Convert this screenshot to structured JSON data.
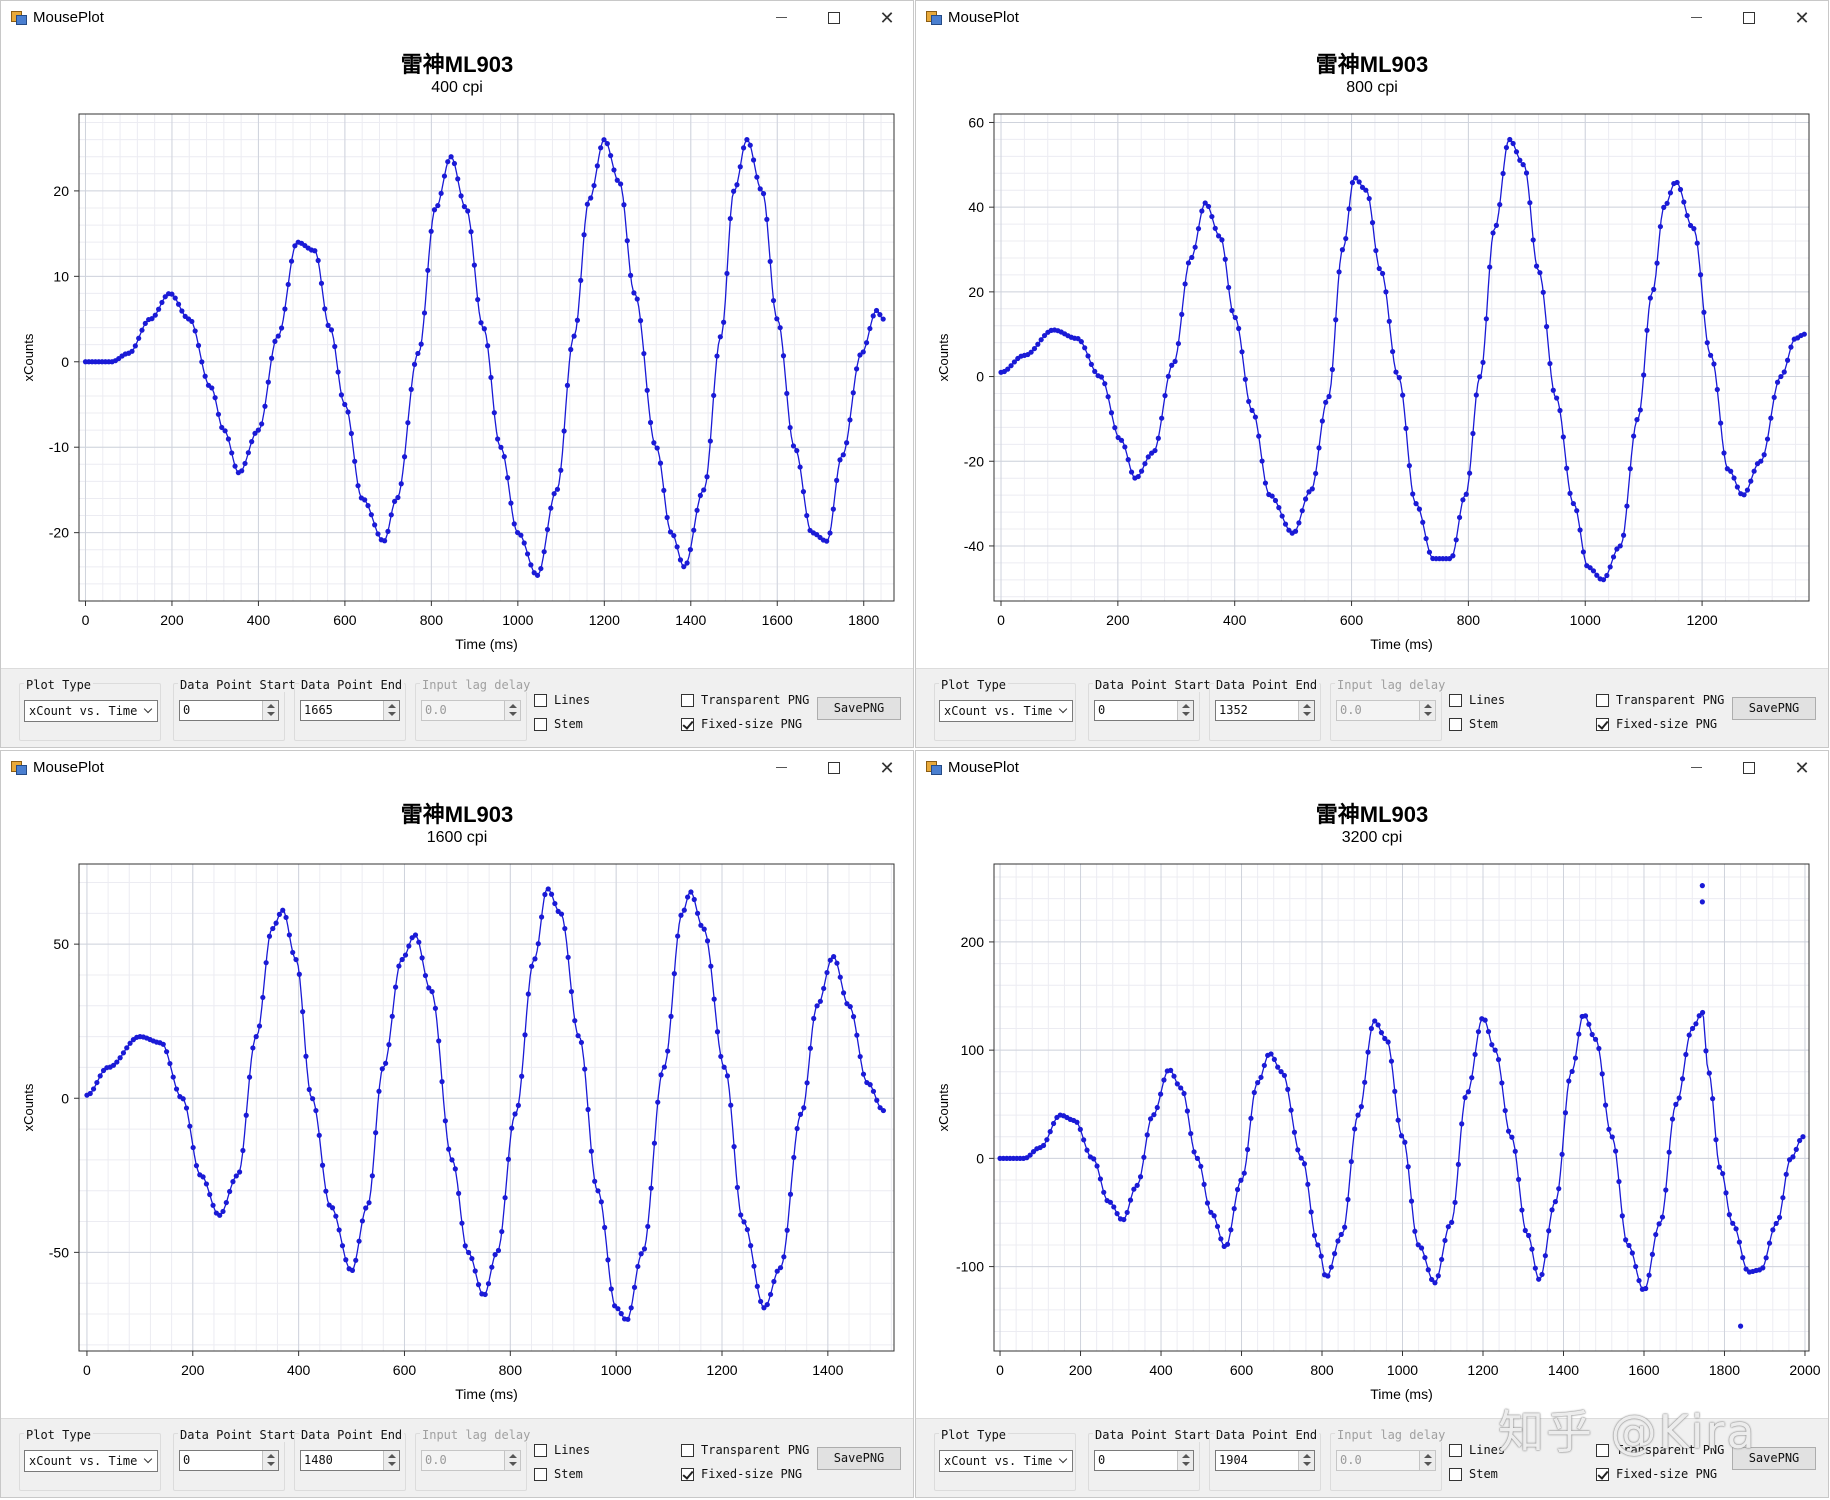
{
  "watermark": "知乎 @Kira",
  "windows": [
    {
      "app_title": "MousePlot",
      "plot_title": "雷神ML903",
      "plot_subtitle": "400 cpi",
      "controls": {
        "plot_type_label": "Plot Type",
        "plot_type_value": "xCount vs. Time",
        "start_label": "Data Point Start",
        "start_value": "0",
        "end_label": "Data Point End",
        "end_value": "1665",
        "lag_label": "Input lag delay",
        "lag_value": "0.0",
        "lines_label": "Lines",
        "lines_checked": false,
        "stem_label": "Stem",
        "stem_checked": false,
        "transparent_label": "Transparent PNG",
        "transparent_checked": false,
        "fixed_label": "Fixed-size PNG",
        "fixed_checked": true,
        "save_label": "SavePNG"
      },
      "chart_data": {
        "type": "scatter",
        "xlabel": "Time (ms)",
        "ylabel": "xCounts",
        "xlim": [
          -15,
          1870
        ],
        "ylim": [
          -28,
          29
        ],
        "xticks": [
          0,
          200,
          400,
          600,
          800,
          1000,
          1200,
          1400,
          1600,
          1800
        ],
        "yticks": [
          -20,
          -10,
          0,
          10,
          20
        ],
        "grid": true,
        "markers": true,
        "line": true,
        "series_color": "#1a1ad6",
        "key_points": [
          [
            0,
            0
          ],
          [
            60,
            0
          ],
          [
            100,
            1
          ],
          [
            150,
            5
          ],
          [
            195,
            8
          ],
          [
            240,
            5
          ],
          [
            290,
            -3
          ],
          [
            320,
            -8
          ],
          [
            355,
            -13
          ],
          [
            400,
            -8
          ],
          [
            445,
            3
          ],
          [
            490,
            14
          ],
          [
            530,
            13
          ],
          [
            565,
            4
          ],
          [
            600,
            -5
          ],
          [
            640,
            -16
          ],
          [
            690,
            -21
          ],
          [
            720,
            -16
          ],
          [
            770,
            1
          ],
          [
            810,
            18
          ],
          [
            845,
            24
          ],
          [
            880,
            18
          ],
          [
            920,
            4
          ],
          [
            960,
            -10
          ],
          [
            1000,
            -20
          ],
          [
            1045,
            -25
          ],
          [
            1090,
            -15
          ],
          [
            1130,
            3
          ],
          [
            1165,
            19
          ],
          [
            1200,
            26
          ],
          [
            1235,
            21
          ],
          [
            1270,
            8
          ],
          [
            1320,
            -10
          ],
          [
            1355,
            -20
          ],
          [
            1385,
            -24
          ],
          [
            1430,
            -15
          ],
          [
            1470,
            3
          ],
          [
            1500,
            20
          ],
          [
            1530,
            26
          ],
          [
            1565,
            20
          ],
          [
            1600,
            5
          ],
          [
            1640,
            -10
          ],
          [
            1680,
            -20
          ],
          [
            1715,
            -21
          ],
          [
            1750,
            -11
          ],
          [
            1795,
            1
          ],
          [
            1830,
            6
          ],
          [
            1845,
            5
          ]
        ]
      }
    },
    {
      "app_title": "MousePlot",
      "plot_title": "雷神ML903",
      "plot_subtitle": "800 cpi",
      "controls": {
        "plot_type_label": "Plot Type",
        "plot_type_value": "xCount vs. Time",
        "start_label": "Data Point Start",
        "start_value": "0",
        "end_label": "Data Point End",
        "end_value": "1352",
        "lag_label": "Input lag delay",
        "lag_value": "0.0",
        "lines_label": "Lines",
        "lines_checked": false,
        "stem_label": "Stem",
        "stem_checked": false,
        "transparent_label": "Transparent PNG",
        "transparent_checked": false,
        "fixed_label": "Fixed-size PNG",
        "fixed_checked": true,
        "save_label": "SavePNG"
      },
      "chart_data": {
        "type": "scatter",
        "xlabel": "Time (ms)",
        "ylabel": "xCounts",
        "xlim": [
          -12,
          1383
        ],
        "ylim": [
          -53,
          62
        ],
        "xticks": [
          0,
          200,
          400,
          600,
          800,
          1000,
          1200
        ],
        "yticks": [
          -40,
          -20,
          0,
          20,
          40,
          60
        ],
        "grid": true,
        "markers": true,
        "line": true,
        "series_color": "#1a1ad6",
        "key_points": [
          [
            0,
            1
          ],
          [
            40,
            5
          ],
          [
            90,
            11
          ],
          [
            130,
            9
          ],
          [
            170,
            0
          ],
          [
            205,
            -15
          ],
          [
            230,
            -24
          ],
          [
            260,
            -18
          ],
          [
            295,
            3
          ],
          [
            325,
            28
          ],
          [
            350,
            41
          ],
          [
            375,
            33
          ],
          [
            400,
            14
          ],
          [
            430,
            -8
          ],
          [
            460,
            -28
          ],
          [
            500,
            -37
          ],
          [
            530,
            -27
          ],
          [
            560,
            -5
          ],
          [
            585,
            30
          ],
          [
            605,
            47
          ],
          [
            625,
            44
          ],
          [
            650,
            25
          ],
          [
            680,
            0
          ],
          [
            710,
            -30
          ],
          [
            740,
            -43
          ],
          [
            770,
            -43
          ],
          [
            795,
            -28
          ],
          [
            820,
            0
          ],
          [
            845,
            35
          ],
          [
            870,
            56
          ],
          [
            895,
            50
          ],
          [
            920,
            25
          ],
          [
            950,
            -5
          ],
          [
            980,
            -30
          ],
          [
            1005,
            -45
          ],
          [
            1030,
            -48
          ],
          [
            1060,
            -40
          ],
          [
            1090,
            -10
          ],
          [
            1115,
            20
          ],
          [
            1135,
            40
          ],
          [
            1155,
            46
          ],
          [
            1185,
            35
          ],
          [
            1215,
            5
          ],
          [
            1245,
            -22
          ],
          [
            1270,
            -28
          ],
          [
            1300,
            -20
          ],
          [
            1335,
            0
          ],
          [
            1360,
            9
          ],
          [
            1375,
            10
          ]
        ]
      }
    },
    {
      "app_title": "MousePlot",
      "plot_title": "雷神ML903",
      "plot_subtitle": "1600 cpi",
      "controls": {
        "plot_type_label": "Plot Type",
        "plot_type_value": "xCount vs. Time",
        "start_label": "Data Point Start",
        "start_value": "0",
        "end_label": "Data Point End",
        "end_value": "1480",
        "lag_label": "Input lag delay",
        "lag_value": "0.0",
        "lines_label": "Lines",
        "lines_checked": false,
        "stem_label": "Stem",
        "stem_checked": false,
        "transparent_label": "Transparent PNG",
        "transparent_checked": false,
        "fixed_label": "Fixed-size PNG",
        "fixed_checked": true,
        "save_label": "SavePNG"
      },
      "chart_data": {
        "type": "scatter",
        "xlabel": "Time (ms)",
        "ylabel": "xCounts",
        "xlim": [
          -15,
          1525
        ],
        "ylim": [
          -82,
          76
        ],
        "xticks": [
          0,
          200,
          400,
          600,
          800,
          1000,
          1200,
          1400
        ],
        "yticks": [
          -50,
          0,
          50
        ],
        "grid": true,
        "markers": true,
        "line": true,
        "series_color": "#1a1ad6",
        "key_points": [
          [
            0,
            1
          ],
          [
            40,
            10
          ],
          [
            100,
            20
          ],
          [
            140,
            18
          ],
          [
            180,
            0
          ],
          [
            215,
            -25
          ],
          [
            250,
            -38
          ],
          [
            285,
            -25
          ],
          [
            320,
            20
          ],
          [
            350,
            55
          ],
          [
            370,
            61
          ],
          [
            395,
            45
          ],
          [
            425,
            0
          ],
          [
            460,
            -35
          ],
          [
            500,
            -56
          ],
          [
            530,
            -35
          ],
          [
            560,
            10
          ],
          [
            595,
            45
          ],
          [
            620,
            53
          ],
          [
            650,
            35
          ],
          [
            690,
            -20
          ],
          [
            720,
            -50
          ],
          [
            750,
            -64
          ],
          [
            775,
            -50
          ],
          [
            810,
            -5
          ],
          [
            845,
            45
          ],
          [
            870,
            68
          ],
          [
            895,
            60
          ],
          [
            930,
            20
          ],
          [
            965,
            -30
          ],
          [
            1000,
            -68
          ],
          [
            1020,
            -72
          ],
          [
            1050,
            -50
          ],
          [
            1090,
            10
          ],
          [
            1125,
            60
          ],
          [
            1140,
            67
          ],
          [
            1165,
            55
          ],
          [
            1205,
            10
          ],
          [
            1240,
            -40
          ],
          [
            1280,
            -68
          ],
          [
            1310,
            -55
          ],
          [
            1350,
            -5
          ],
          [
            1380,
            30
          ],
          [
            1410,
            46
          ],
          [
            1440,
            30
          ],
          [
            1475,
            5
          ],
          [
            1505,
            -4
          ]
        ]
      }
    },
    {
      "app_title": "MousePlot",
      "plot_title": "雷神ML903",
      "plot_subtitle": "3200 cpi",
      "controls": {
        "plot_type_label": "Plot Type",
        "plot_type_value": "xCount vs. Time",
        "start_label": "Data Point Start",
        "start_value": "0",
        "end_label": "Data Point End",
        "end_value": "1904",
        "lag_label": "Input lag delay",
        "lag_value": "0.0",
        "lines_label": "Lines",
        "lines_checked": false,
        "stem_label": "Stem",
        "stem_checked": false,
        "transparent_label": "Transparent PNG",
        "transparent_checked": false,
        "fixed_label": "Fixed-size PNG",
        "fixed_checked": true,
        "save_label": "SavePNG"
      },
      "chart_data": {
        "type": "scatter",
        "xlabel": "Time (ms)",
        "ylabel": "xCounts",
        "xlim": [
          -15,
          2010
        ],
        "ylim": [
          -178,
          272
        ],
        "xticks": [
          0,
          200,
          400,
          600,
          800,
          1000,
          1200,
          1400,
          1600,
          1800,
          2000
        ],
        "yticks": [
          -100,
          0,
          100,
          200
        ],
        "grid": true,
        "markers": true,
        "line": true,
        "series_color": "#1a1ad6",
        "key_points": [
          [
            0,
            0
          ],
          [
            60,
            0
          ],
          [
            100,
            10
          ],
          [
            150,
            40
          ],
          [
            185,
            35
          ],
          [
            230,
            0
          ],
          [
            270,
            -40
          ],
          [
            305,
            -57
          ],
          [
            340,
            -25
          ],
          [
            380,
            40
          ],
          [
            420,
            82
          ],
          [
            450,
            65
          ],
          [
            490,
            0
          ],
          [
            525,
            -50
          ],
          [
            560,
            -82
          ],
          [
            600,
            -20
          ],
          [
            640,
            70
          ],
          [
            670,
            97
          ],
          [
            700,
            80
          ],
          [
            750,
            0
          ],
          [
            790,
            -80
          ],
          [
            810,
            -110
          ],
          [
            850,
            -70
          ],
          [
            890,
            40
          ],
          [
            930,
            127
          ],
          [
            960,
            110
          ],
          [
            1000,
            20
          ],
          [
            1040,
            -80
          ],
          [
            1080,
            -115
          ],
          [
            1120,
            -60
          ],
          [
            1160,
            60
          ],
          [
            1200,
            130
          ],
          [
            1230,
            100
          ],
          [
            1270,
            20
          ],
          [
            1310,
            -70
          ],
          [
            1340,
            -112
          ],
          [
            1380,
            -40
          ],
          [
            1420,
            80
          ],
          [
            1450,
            133
          ],
          [
            1480,
            110
          ],
          [
            1520,
            20
          ],
          [
            1560,
            -80
          ],
          [
            1600,
            -122
          ],
          [
            1640,
            -60
          ],
          [
            1680,
            50
          ],
          [
            1720,
            120
          ],
          [
            1745,
            135
          ],
          [
            1760,
            80
          ],
          [
            1790,
            -10
          ],
          [
            1820,
            -60
          ],
          [
            1860,
            -105
          ],
          [
            1890,
            -103
          ],
          [
            1930,
            -60
          ],
          [
            1965,
            0
          ],
          [
            1995,
            20
          ]
        ],
        "outliers": [
          [
            1745,
            252
          ],
          [
            1745,
            237
          ],
          [
            1840,
            -155
          ]
        ]
      }
    }
  ]
}
